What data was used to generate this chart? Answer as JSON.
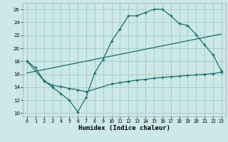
{
  "title": "",
  "xlabel": "Humidex (Indice chaleur)",
  "bg_color": "#cce8e8",
  "grid_color": "#aacccc",
  "line_color": "#1a6e6e",
  "xlim": [
    -0.5,
    23.5
  ],
  "ylim": [
    9.5,
    27.0
  ],
  "xticks": [
    0,
    1,
    2,
    3,
    4,
    5,
    6,
    7,
    8,
    9,
    10,
    11,
    12,
    13,
    14,
    15,
    16,
    17,
    18,
    19,
    20,
    21,
    22,
    23
  ],
  "yticks": [
    10,
    12,
    14,
    16,
    18,
    20,
    22,
    24,
    26
  ],
  "line1_x": [
    0,
    1,
    2,
    3,
    4,
    5,
    6,
    7,
    8,
    9,
    10,
    11,
    12,
    13,
    14,
    15,
    16,
    17,
    18,
    19,
    20,
    21,
    22,
    23
  ],
  "line1_y": [
    18,
    17,
    15,
    14,
    13,
    12,
    10.2,
    12.5,
    16.2,
    18.3,
    21.1,
    23.0,
    25.0,
    25.0,
    25.5,
    26.0,
    26.0,
    25.0,
    23.8,
    23.5,
    22.1,
    20.5,
    19.0,
    16.5
  ],
  "line2_x": [
    0,
    2,
    3,
    4,
    5,
    6,
    7,
    10,
    11,
    12,
    13,
    14,
    15,
    16,
    17,
    18,
    19,
    20,
    21,
    22,
    23
  ],
  "line2_y": [
    18.0,
    15.0,
    14.3,
    14.1,
    13.8,
    13.6,
    13.3,
    14.5,
    14.7,
    14.9,
    15.1,
    15.2,
    15.4,
    15.5,
    15.6,
    15.7,
    15.8,
    15.9,
    16.0,
    16.1,
    16.3
  ],
  "line3_x": [
    0,
    23
  ],
  "line3_y": [
    16.2,
    22.2
  ]
}
